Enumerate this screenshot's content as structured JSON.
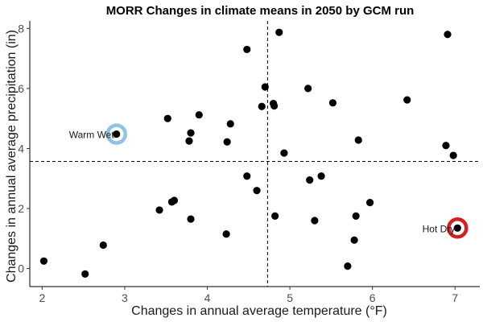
{
  "chart_data": {
    "type": "scatter",
    "title": "MORR Changes in climate means in 2050 by GCM run",
    "xlabel": "Changes in annual average temperature (°F)",
    "ylabel": "Changes in annual average precipitation (in)",
    "xlim": [
      1.85,
      7.3
    ],
    "ylim": [
      -0.6,
      8.25
    ],
    "x_ticks": [
      2,
      3,
      4,
      5,
      6,
      7
    ],
    "y_ticks": [
      0,
      2,
      4,
      6,
      8
    ],
    "grid": false,
    "point_color": "#000000",
    "reference_lines": {
      "vertical_x": 4.73,
      "horizontal_y": 3.57,
      "style": "dashed"
    },
    "points": [
      {
        "x": 2.02,
        "y": 0.25
      },
      {
        "x": 2.52,
        "y": -0.18
      },
      {
        "x": 2.74,
        "y": 0.78
      },
      {
        "x": 2.9,
        "y": 4.48
      },
      {
        "x": 3.42,
        "y": 1.95
      },
      {
        "x": 3.52,
        "y": 5.0
      },
      {
        "x": 3.57,
        "y": 2.22
      },
      {
        "x": 3.6,
        "y": 2.27
      },
      {
        "x": 3.78,
        "y": 4.25
      },
      {
        "x": 3.8,
        "y": 4.52
      },
      {
        "x": 3.8,
        "y": 1.65
      },
      {
        "x": 3.9,
        "y": 5.12
      },
      {
        "x": 4.23,
        "y": 1.15
      },
      {
        "x": 4.24,
        "y": 4.22
      },
      {
        "x": 4.28,
        "y": 4.82
      },
      {
        "x": 4.48,
        "y": 7.3
      },
      {
        "x": 4.48,
        "y": 3.08
      },
      {
        "x": 4.6,
        "y": 2.6
      },
      {
        "x": 4.66,
        "y": 5.4
      },
      {
        "x": 4.7,
        "y": 6.05
      },
      {
        "x": 4.8,
        "y": 5.5
      },
      {
        "x": 4.81,
        "y": 5.42
      },
      {
        "x": 4.82,
        "y": 1.75
      },
      {
        "x": 4.87,
        "y": 7.87
      },
      {
        "x": 4.93,
        "y": 3.85
      },
      {
        "x": 5.22,
        "y": 6.0
      },
      {
        "x": 5.24,
        "y": 2.95
      },
      {
        "x": 5.3,
        "y": 1.6
      },
      {
        "x": 5.38,
        "y": 3.08
      },
      {
        "x": 5.52,
        "y": 5.52
      },
      {
        "x": 5.7,
        "y": 0.08
      },
      {
        "x": 5.78,
        "y": 0.95
      },
      {
        "x": 5.8,
        "y": 1.75
      },
      {
        "x": 5.83,
        "y": 4.28
      },
      {
        "x": 5.97,
        "y": 2.2
      },
      {
        "x": 6.42,
        "y": 5.62
      },
      {
        "x": 6.89,
        "y": 4.1
      },
      {
        "x": 6.91,
        "y": 7.8
      },
      {
        "x": 6.98,
        "y": 3.77
      },
      {
        "x": 7.03,
        "y": 1.35
      }
    ],
    "highlights": [
      {
        "label": "Warm Wet",
        "x": 2.9,
        "y": 4.48,
        "color": "#8ec3e6",
        "label_side": "left"
      },
      {
        "label": "Hot Dry",
        "x": 7.03,
        "y": 1.35,
        "color": "#d21f1f",
        "label_side": "left"
      }
    ]
  }
}
